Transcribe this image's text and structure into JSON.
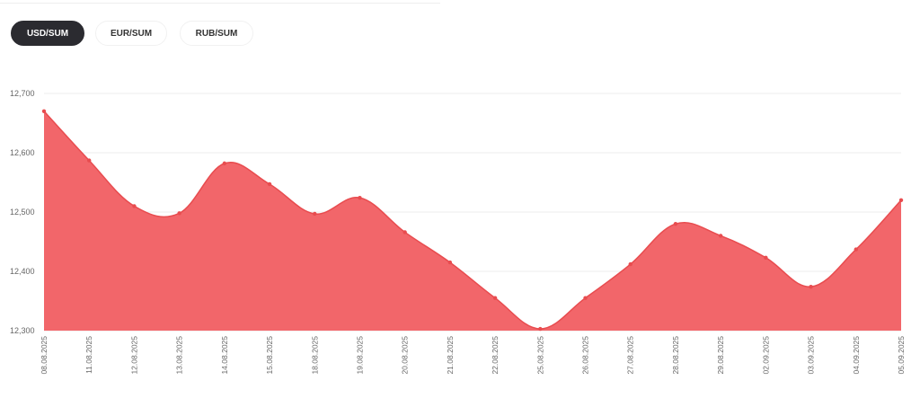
{
  "tabs": [
    {
      "label": "USD/SUM",
      "active": true
    },
    {
      "label": "EUR/SUM",
      "active": false
    },
    {
      "label": "RUB/SUM",
      "active": false
    }
  ],
  "colors": {
    "area": "#f2666a",
    "point": "#e84c4f",
    "active_tab": "#2b2b30",
    "grid": "#eeeeee"
  },
  "chart_data": {
    "type": "area",
    "x": [
      "08.08.2025",
      "11.08.2025",
      "12.08.2025",
      "13.08.2025",
      "14.08.2025",
      "15.08.2025",
      "18.08.2025",
      "19.08.2025",
      "20.08.2025",
      "21.08.2025",
      "22.08.2025",
      "25.08.2025",
      "26.08.2025",
      "27.08.2025",
      "28.08.2025",
      "29.08.2025",
      "02.09.2025",
      "03.09.2025",
      "04.09.2025",
      "05.09.2025"
    ],
    "values": [
      12670,
      12587,
      12510,
      12498,
      12582,
      12547,
      12497,
      12524,
      12466,
      12415,
      12355,
      12303,
      12355,
      12412,
      12480,
      12460,
      12423,
      12374,
      12437,
      12520
    ],
    "ylim": [
      12300,
      12700
    ],
    "yticks": [
      "12,700",
      "12,600",
      "12,500",
      "12,400",
      "12,300"
    ],
    "ytick_values": [
      12700,
      12600,
      12500,
      12400,
      12300
    ],
    "grid": true,
    "legend": "none"
  }
}
